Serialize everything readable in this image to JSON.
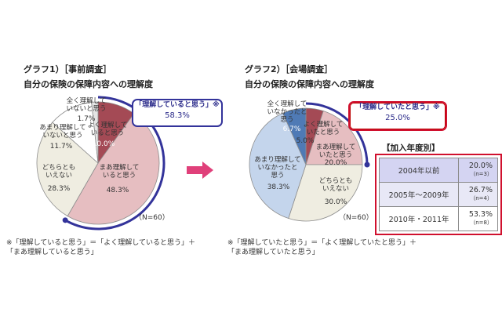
{
  "chart_data": [
    {
      "type": "pie",
      "title_line1": "グラフ1）［事前調査］",
      "title_line2": "自分の保険の保障内容への理解度",
      "n_label": "（N=60）",
      "slices": [
        {
          "label": "よく理解して\nいると思う",
          "value": 10.0,
          "value_text": "10.0%",
          "color": "#a44a55"
        },
        {
          "label": "まあ理解して\nいると思う",
          "value": 48.3,
          "value_text": "48.3%",
          "color": "#e6bec1"
        },
        {
          "label": "どちらとも\nいえない",
          "value": 28.3,
          "value_text": "28.3%",
          "color": "#efede1"
        },
        {
          "label": "あまり理解して\nいないと思う",
          "value": 11.7,
          "value_text": "11.7%",
          "color": "#ffffff"
        },
        {
          "label": "全く理解して\nいないと思う",
          "value": 1.7,
          "value_text": "1.7%",
          "color": "#e4e4e4"
        }
      ],
      "callout": {
        "head": "「理解していると思う」※",
        "value": "58.3%"
      },
      "note_line1": "※「理解していると思う」＝「よく理解していると思う」＋",
      "note_line2": "「まあ理解していると思う」"
    },
    {
      "type": "pie",
      "title_line1": "グラフ2）［会場調査］",
      "title_line2": "自分の保険の保障内容への理解度",
      "n_label": "（N=60）",
      "slices": [
        {
          "label": "よく理解して\nいたと思う",
          "value": 5.0,
          "value_text": "5.0%",
          "color": "#a44a55"
        },
        {
          "label": "まあ理解して\nいたと思う",
          "value": 20.0,
          "value_text": "20.0%",
          "color": "#e6bec1"
        },
        {
          "label": "どちらとも\nいえない",
          "value": 30.0,
          "value_text": "30.0%",
          "color": "#efede1"
        },
        {
          "label": "あまり理解して\nいなかったと\n思う",
          "value": 38.3,
          "value_text": "38.3%",
          "color": "#c4d5ec"
        },
        {
          "label": "全く理解して\nいなかったと\n思う",
          "value": 6.7,
          "value_text": "6.7%",
          "color": "#4f7ab5"
        }
      ],
      "callout": {
        "head": "「理解していたと思う」※",
        "value": "25.0%"
      },
      "note_line1": "※「理解していたと思う」＝「よく理解していたと思う」＋",
      "note_line2": "「まあ理解していたと思う」"
    }
  ],
  "year_table": {
    "title": "【加入年度別】",
    "rows": [
      {
        "name": "2004年以前",
        "value": "20.0%",
        "n": "（n=3）"
      },
      {
        "name": "2005年～2009年",
        "value": "26.7%",
        "n": "（n=4）"
      },
      {
        "name": "2010年・2011年",
        "value": "53.3%",
        "n": "（n=8）"
      }
    ]
  },
  "colors": {
    "accent_blue": "#33339a",
    "callout_red": "#d0102e",
    "arrow_pink": "#e0407a"
  }
}
